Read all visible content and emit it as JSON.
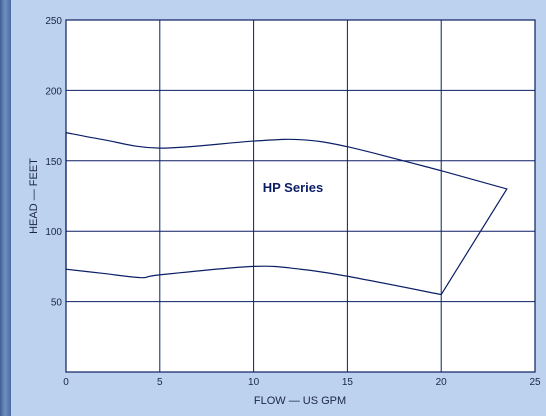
{
  "chart_data": {
    "type": "area",
    "title": "",
    "xlabel": "FLOW — US GPM",
    "ylabel": "HEAD — FEET",
    "xlim": [
      0,
      25
    ],
    "ylim": [
      0,
      250
    ],
    "x_ticks": [
      "0",
      "5",
      "10",
      "15",
      "20",
      "25"
    ],
    "y_ticks": [
      "50",
      "100",
      "150",
      "200",
      "250"
    ],
    "grid": true,
    "region_label": "HP Series",
    "envelope_upper": [
      {
        "x": 0,
        "y": 170
      },
      {
        "x": 2,
        "y": 165
      },
      {
        "x": 5,
        "y": 159
      },
      {
        "x": 10,
        "y": 164
      },
      {
        "x": 12.5,
        "y": 165
      },
      {
        "x": 15,
        "y": 160
      },
      {
        "x": 20,
        "y": 143
      },
      {
        "x": 23.5,
        "y": 130
      }
    ],
    "envelope_lower": [
      {
        "x": 0,
        "y": 73
      },
      {
        "x": 2,
        "y": 70
      },
      {
        "x": 4,
        "y": 67
      },
      {
        "x": 5,
        "y": 69
      },
      {
        "x": 10,
        "y": 75
      },
      {
        "x": 12.5,
        "y": 73
      },
      {
        "x": 15,
        "y": 68
      },
      {
        "x": 20,
        "y": 55
      }
    ]
  }
}
